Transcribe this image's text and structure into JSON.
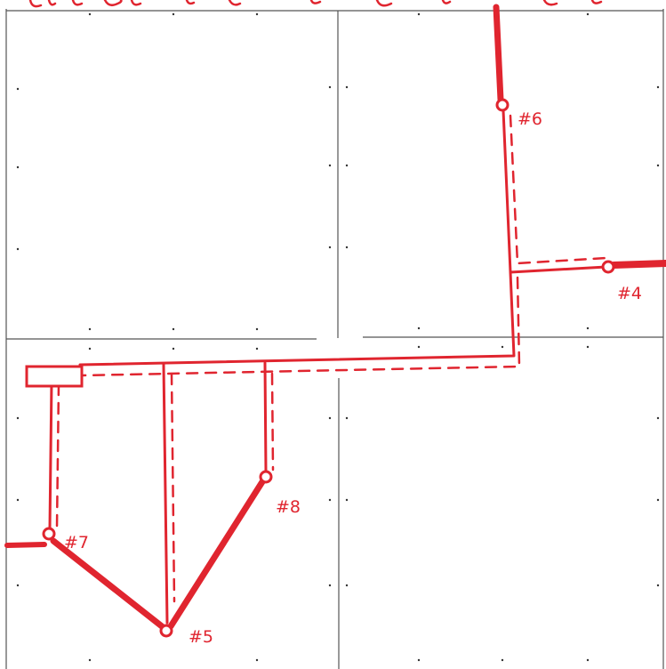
{
  "colors": {
    "ink": "#e0252f",
    "grid": "#555555",
    "paper": "#ffffff",
    "dot": "#333333"
  },
  "labels": {
    "node_6": "#6",
    "node_4": "#4",
    "node_8": "#8",
    "node_7": "#7",
    "node_5": "#5"
  }
}
